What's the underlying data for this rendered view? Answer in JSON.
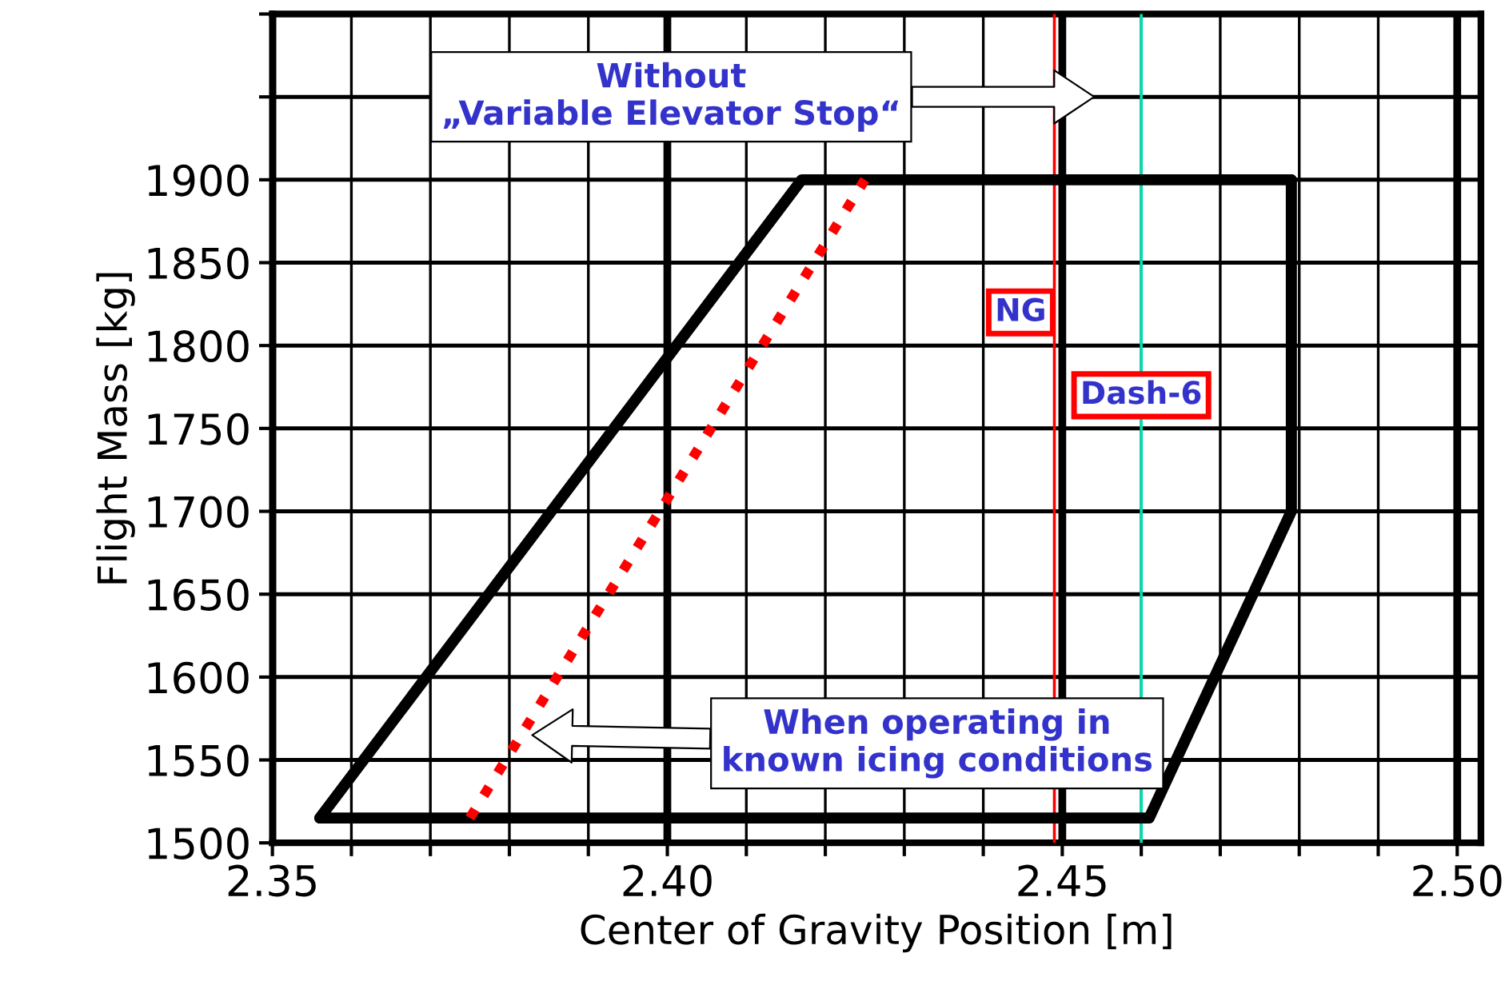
{
  "chart_data": {
    "type": "line",
    "xlabel": "Center of Gravity Position [m]",
    "ylabel": "Flight Mass [kg]",
    "xlim": [
      2.35,
      2.503
    ],
    "ylim": [
      1500,
      2000
    ],
    "xticks": [
      {
        "value": 2.35,
        "label": "2.35"
      },
      {
        "value": 2.36,
        "label": null
      },
      {
        "value": 2.37,
        "label": null
      },
      {
        "value": 2.38,
        "label": null
      },
      {
        "value": 2.39,
        "label": null
      },
      {
        "value": 2.4,
        "label": "2.40"
      },
      {
        "value": 2.41,
        "label": null
      },
      {
        "value": 2.42,
        "label": null
      },
      {
        "value": 2.43,
        "label": null
      },
      {
        "value": 2.44,
        "label": null
      },
      {
        "value": 2.45,
        "label": "2.45"
      },
      {
        "value": 2.46,
        "label": null
      },
      {
        "value": 2.47,
        "label": null
      },
      {
        "value": 2.48,
        "label": null
      },
      {
        "value": 2.49,
        "label": null
      },
      {
        "value": 2.5,
        "label": "2.50"
      }
    ],
    "yticks": [
      1500,
      1550,
      1600,
      1650,
      1700,
      1750,
      1800,
      1850,
      1900,
      {
        "value": 1950,
        "label": null
      },
      {
        "value": 2000,
        "label": null
      }
    ],
    "grid": true,
    "marker": "none",
    "series": [
      {
        "color": "#000000",
        "line_style": "solid",
        "x": [
          2.356,
          2.417,
          2.479
        ],
        "values": [
          1515,
          1900,
          1900
        ]
      },
      {
        "color": "#000000",
        "line_style": "solid",
        "x": [
          2.356,
          2.461,
          2.479,
          2.479
        ],
        "values": [
          1515,
          1515,
          1700,
          1900
        ]
      },
      {
        "color": "#ff0000",
        "line_style": "dotted",
        "x": [
          2.375,
          2.425
        ],
        "values": [
          1515,
          1900
        ]
      }
    ],
    "ref_lines": [
      {
        "axis": "x",
        "value": 2.449,
        "label": "NG",
        "color": "#ff0000"
      },
      {
        "axis": "x",
        "value": 2.46,
        "label": "Dash-6",
        "color": "#00e0b0"
      }
    ],
    "annotations": [
      "Without\n„Variable Elevator Stop“",
      "When operating in\nknown icing conditions"
    ]
  }
}
